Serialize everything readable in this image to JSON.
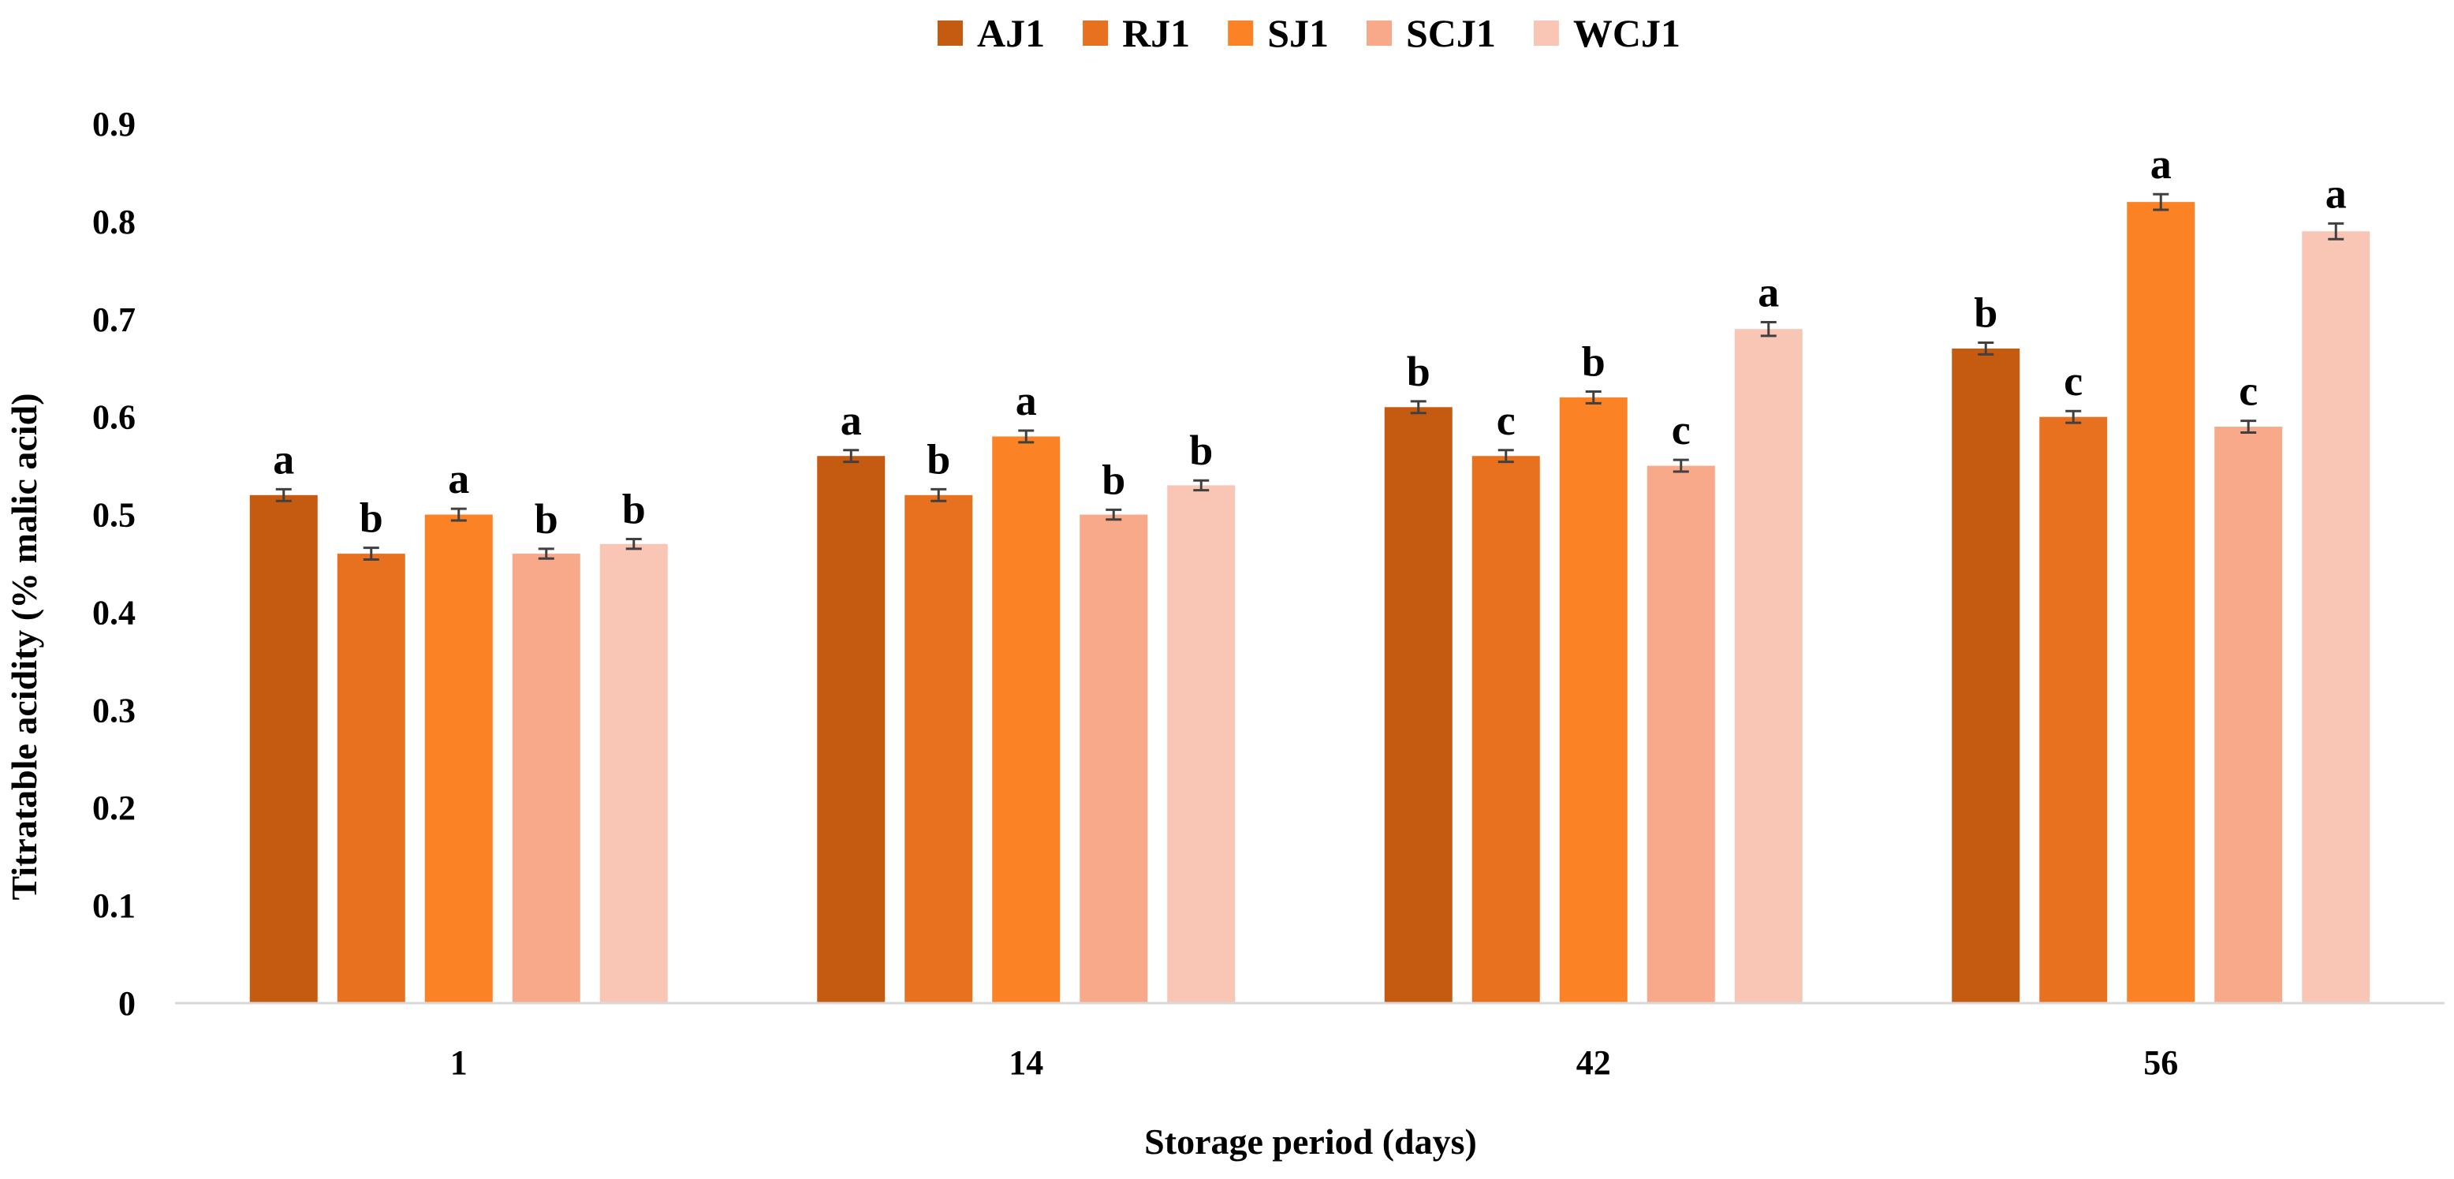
{
  "chart_data": {
    "type": "bar",
    "title": "",
    "xlabel": "Storage period (days)",
    "ylabel": "Titratable acidity (% malic acid)",
    "ylim": [
      0,
      0.9
    ],
    "yticks": [
      "0",
      "0.1",
      "0.2",
      "0.3",
      "0.4",
      "0.5",
      "0.6",
      "0.7",
      "0.8",
      "0.9"
    ],
    "grid": false,
    "legend_position": "top-center",
    "categories": [
      "1",
      "14",
      "42",
      "56"
    ],
    "series": [
      {
        "name": "AJ1",
        "color": "#C55A11",
        "values": [
          0.52,
          0.56,
          0.61,
          0.67
        ],
        "errors": [
          0.006,
          0.006,
          0.006,
          0.006
        ],
        "letters": [
          "a",
          "a",
          "b",
          "b"
        ]
      },
      {
        "name": "RJ1",
        "color": "#E8711F",
        "values": [
          0.46,
          0.52,
          0.56,
          0.6
        ],
        "errors": [
          0.006,
          0.006,
          0.006,
          0.006
        ],
        "letters": [
          "b",
          "b",
          "c",
          "c"
        ]
      },
      {
        "name": "SJ1",
        "color": "#FB8225",
        "values": [
          0.5,
          0.58,
          0.62,
          0.82
        ],
        "errors": [
          0.006,
          0.006,
          0.006,
          0.008
        ],
        "letters": [
          "a",
          "a",
          "b",
          "a"
        ]
      },
      {
        "name": "SCJ1",
        "color": "#F8A98A",
        "values": [
          0.46,
          0.5,
          0.55,
          0.59
        ],
        "errors": [
          0.005,
          0.005,
          0.006,
          0.006
        ],
        "letters": [
          "b",
          "b",
          "c",
          "c"
        ]
      },
      {
        "name": "WCJ1",
        "color": "#F9C6B6",
        "values": [
          0.47,
          0.53,
          0.69,
          0.79
        ],
        "errors": [
          0.005,
          0.005,
          0.007,
          0.008
        ],
        "letters": [
          "b",
          "b",
          "a",
          "a"
        ]
      }
    ]
  }
}
